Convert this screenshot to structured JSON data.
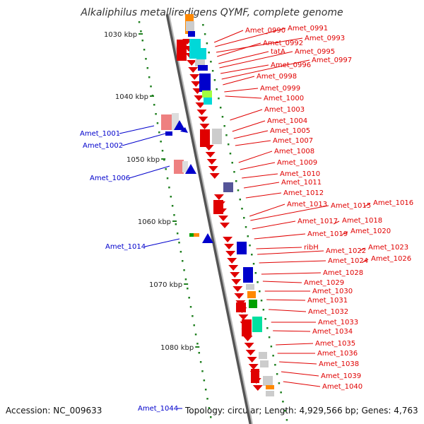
{
  "title": "Alkaliphilus metalliredigens QYMF, complete genome",
  "accession": "Accession: NC_009633",
  "topology": "Topology: circular; Length: 4,929,566 bp; Genes: 4,763",
  "colors": {
    "forward": "#e00000",
    "reverse": "#0000cc",
    "backbone": "#888888",
    "tick": "#208020"
  },
  "kbp_ticks": [
    "1030 kbp",
    "1040 kbp",
    "1050 kbp",
    "1060 kbp",
    "1070 kbp",
    "1080 kbp"
  ],
  "right_labels": [
    "Amet_0990",
    "Amet_0991",
    "Amet_0993",
    "Amet_0992",
    "tatA",
    "Amet_0995",
    "Amet_0996",
    "Amet_0997",
    "Amet_0998",
    "Amet_0999",
    "Amet_1000",
    "Amet_1003",
    "Amet_1004",
    "Amet_1005",
    "Amet_1007",
    "Amet_1008",
    "Amet_1009",
    "Amet_1010",
    "Amet_1011",
    "Amet_1012",
    "Amet_1013",
    "Amet_1015",
    "Amet_1016",
    "Amet_1017",
    "Amet_1018",
    "Amet_1019",
    "Amet_1020",
    "ribH",
    "Amet_1022",
    "Amet_1023",
    "Amet_1024",
    "Amet_1026",
    "Amet_1028",
    "Amet_1029",
    "Amet_1030",
    "Amet_1031",
    "Amet_1032",
    "Amet_1033",
    "Amet_1034",
    "Amet_1035",
    "Amet_1036",
    "Amet_1038",
    "Amet_1039",
    "Amet_1040"
  ],
  "left_labels": [
    "Amet_1001",
    "Amet_1002",
    "Amet_1006",
    "Amet_1014",
    "Amet_1044"
  ]
}
